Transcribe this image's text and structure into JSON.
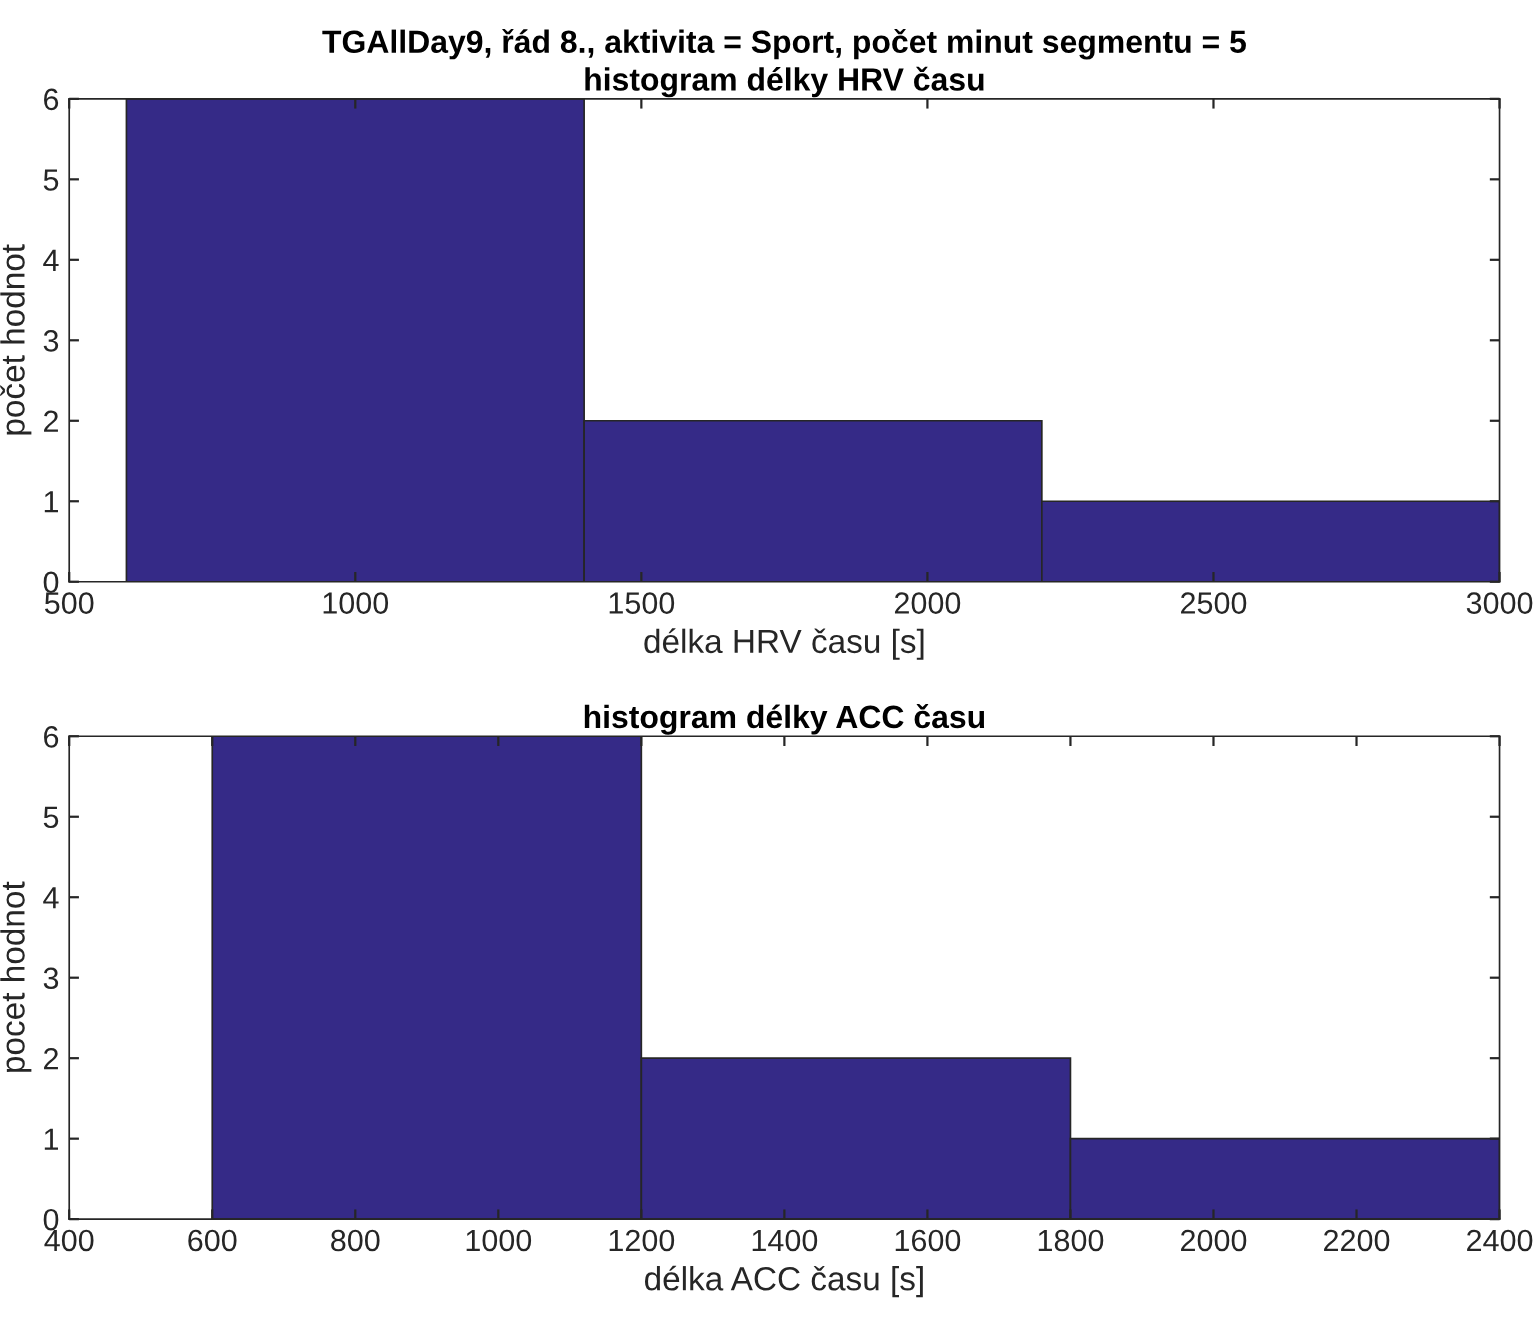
{
  "chart_data": [
    {
      "type": "histogram",
      "title": "TGAllDay9, řád 8., aktivita = Sport, počet minut segmentu = 5\nhistogram délky HRV času",
      "xlabel": "délka HRV času [s]",
      "ylabel": "počet hodnot",
      "bins": [
        600,
        1400,
        2200,
        3000
      ],
      "values": [
        6,
        2,
        1
      ],
      "color": "#352a87",
      "xlim": [
        500,
        3000
      ],
      "xticks": [
        500,
        1000,
        1500,
        2000,
        2500,
        3000
      ],
      "ylim": [
        0,
        6
      ],
      "yticks": [
        0,
        1,
        2,
        3,
        4,
        5,
        6
      ],
      "grid": false,
      "legend": false
    },
    {
      "type": "histogram",
      "title": "histogram délky ACC času",
      "xlabel": "délka ACC času [s]",
      "ylabel": "pocet hodnot",
      "bins": [
        600,
        1200,
        1800,
        2400
      ],
      "values": [
        6,
        2,
        1
      ],
      "color": "#352a87",
      "xlim": [
        400,
        2400
      ],
      "xticks": [
        400,
        600,
        800,
        1000,
        1200,
        1400,
        1600,
        1800,
        2000,
        2200,
        2400
      ],
      "ylim": [
        0,
        6
      ],
      "yticks": [
        0,
        1,
        2,
        3,
        4,
        5,
        6
      ],
      "grid": false,
      "legend": false
    }
  ]
}
